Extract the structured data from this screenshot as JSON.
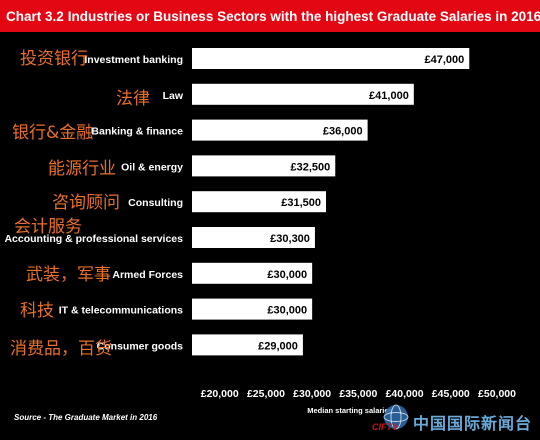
{
  "header": {
    "chart_number": "Chart 3.2",
    "title": "Industries or Business Sectors with the highest Graduate Salaries in 2016"
  },
  "chart_data": {
    "type": "bar",
    "orientation": "horizontal",
    "title": "Industries or Business Sectors with the highest Graduate Salaries in 2016",
    "categories": [
      "Investment banking",
      "Law",
      "Banking & finance",
      "Oil & energy",
      "Consulting",
      "Accounting & professional services",
      "Armed Forces",
      "IT & telecommunications",
      "Consumer goods"
    ],
    "chinese_labels": [
      "投资银行",
      "法律",
      "银行&金融",
      "能源行业",
      "咨询顾问",
      "会计服务",
      "武装，军事",
      "科技",
      "消费品，百货"
    ],
    "values": [
      47000,
      41000,
      36000,
      32500,
      31500,
      30300,
      30000,
      30000,
      29000
    ],
    "value_labels": [
      "£47,000",
      "£41,000",
      "£36,000",
      "£32,500",
      "£31,500",
      "£30,300",
      "£30,000",
      "£30,000",
      "£29,000"
    ],
    "xlabel": "Median starting salaries",
    "xlim": [
      17000,
      50000
    ],
    "ticks": [
      20000,
      25000,
      30000,
      35000,
      40000,
      45000,
      50000
    ],
    "tick_labels": [
      "£20,000",
      "£25,000",
      "£30,000",
      "£35,000",
      "£40,000",
      "£45,000",
      "£50,000"
    ],
    "bar_color": "#ffffff",
    "background": "#000000",
    "grid": false,
    "legend": false
  },
  "source": "Source - The Graduate Market in 2016",
  "watermark": {
    "logo_text": "CIFTV",
    "text": "中国国际新闻台"
  }
}
